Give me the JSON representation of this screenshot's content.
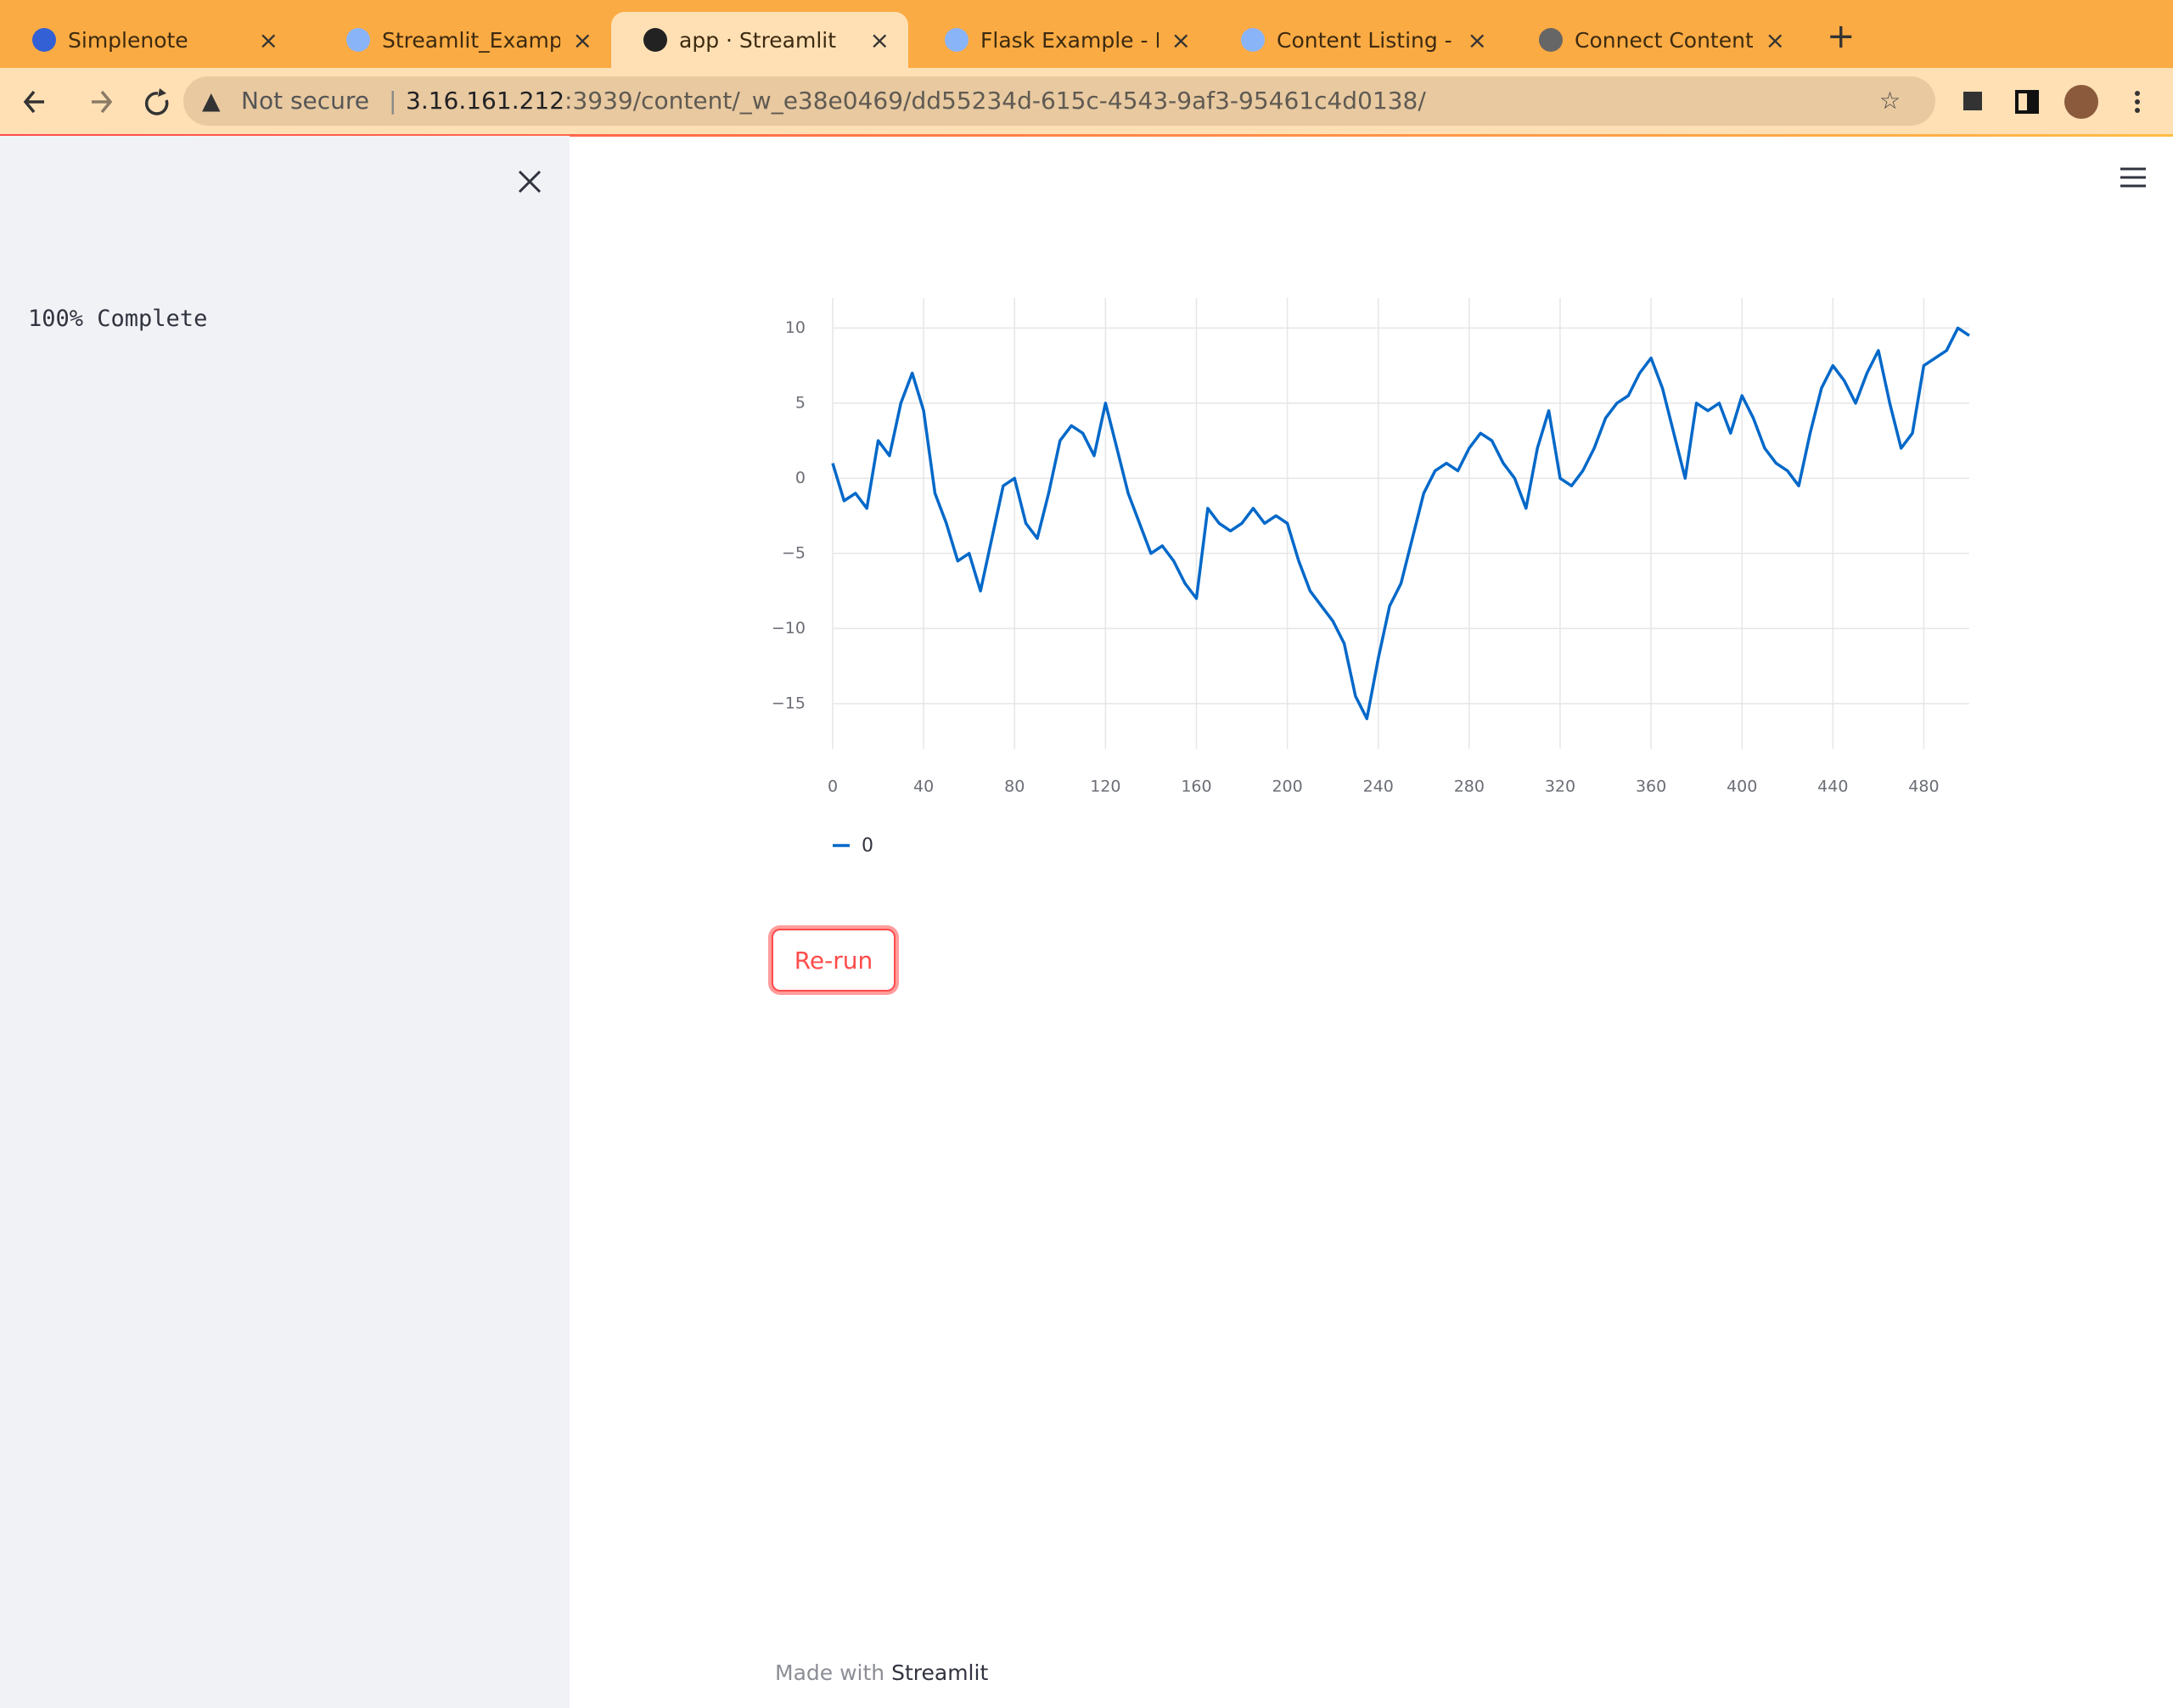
{
  "browser": {
    "tabs": [
      "Simplenote",
      "Streamlit_Example",
      "app · Streamlit",
      "Flask Example - RS",
      "Content Listing - R",
      "Connect Content P"
    ],
    "security": "Not secure",
    "url_host": "3.16.161.212",
    "url_path": ":3939/content/_w_e38e0469/dd55234d-615c-4543-9af3-95461c4d0138/"
  },
  "sidebar": {
    "progress_text": "100% Complete"
  },
  "chart_data": {
    "type": "line",
    "x": [
      0,
      5,
      10,
      15,
      20,
      25,
      30,
      35,
      40,
      45,
      50,
      55,
      60,
      65,
      70,
      75,
      80,
      85,
      90,
      95,
      100,
      105,
      110,
      115,
      120,
      125,
      130,
      135,
      140,
      145,
      150,
      155,
      160,
      165,
      170,
      175,
      180,
      185,
      190,
      195,
      200,
      205,
      210,
      215,
      220,
      225,
      230,
      235,
      240,
      245,
      250,
      255,
      260,
      265,
      270,
      275,
      280,
      285,
      290,
      295,
      300,
      305,
      310,
      315,
      320,
      325,
      330,
      335,
      340,
      345,
      350,
      355,
      360,
      365,
      370,
      375,
      380,
      385,
      390,
      395,
      400,
      405,
      410,
      415,
      420,
      425,
      430,
      435,
      440,
      445,
      450,
      455,
      460,
      465,
      470,
      475,
      480,
      485,
      490,
      495,
      500
    ],
    "series": [
      {
        "name": "0",
        "color": "#0068c9",
        "values": [
          1,
          -1.5,
          -1,
          -2,
          2.5,
          1.5,
          5,
          7,
          4.5,
          -1,
          -3,
          -5.5,
          -5,
          -7.5,
          -4,
          -0.5,
          0,
          -3,
          -4,
          -1,
          2.5,
          3.5,
          3,
          1.5,
          5,
          2,
          -1,
          -3,
          -5,
          -4.5,
          -5.5,
          -7,
          -8,
          -2,
          -3,
          -3.5,
          -3,
          -2,
          -3,
          -2.5,
          -3,
          -5.5,
          -7.5,
          -8.5,
          -9.5,
          -11,
          -14.5,
          -16,
          -12,
          -8.5,
          -7,
          -4,
          -1,
          0.5,
          1,
          0.5,
          2,
          3,
          2.5,
          1,
          0,
          -2,
          2,
          4.5,
          0,
          -0.5,
          0.5,
          2,
          4,
          5,
          5.5,
          7,
          8,
          6,
          3,
          0,
          5,
          4.5,
          5,
          3,
          5.5,
          4,
          2,
          1,
          0.5,
          -0.5,
          3,
          6,
          7.5,
          6.5,
          5,
          7,
          8.5,
          5,
          2,
          3,
          7.5,
          8,
          8.5,
          10,
          9.5
        ]
      }
    ],
    "xlim": [
      0,
      500
    ],
    "ylim": [
      -18,
      12
    ],
    "xticks": [
      0,
      40,
      80,
      120,
      160,
      200,
      240,
      280,
      320,
      360,
      400,
      440,
      480
    ],
    "yticks": [
      {
        "value": -15,
        "label": "−15"
      },
      {
        "value": -10,
        "label": "−10"
      },
      {
        "value": -5,
        "label": "−5"
      },
      0,
      5,
      10
    ],
    "grid": true
  },
  "button": {
    "label": "Re-run"
  },
  "footer": {
    "prefix": "Made with",
    "brand": "Streamlit"
  }
}
